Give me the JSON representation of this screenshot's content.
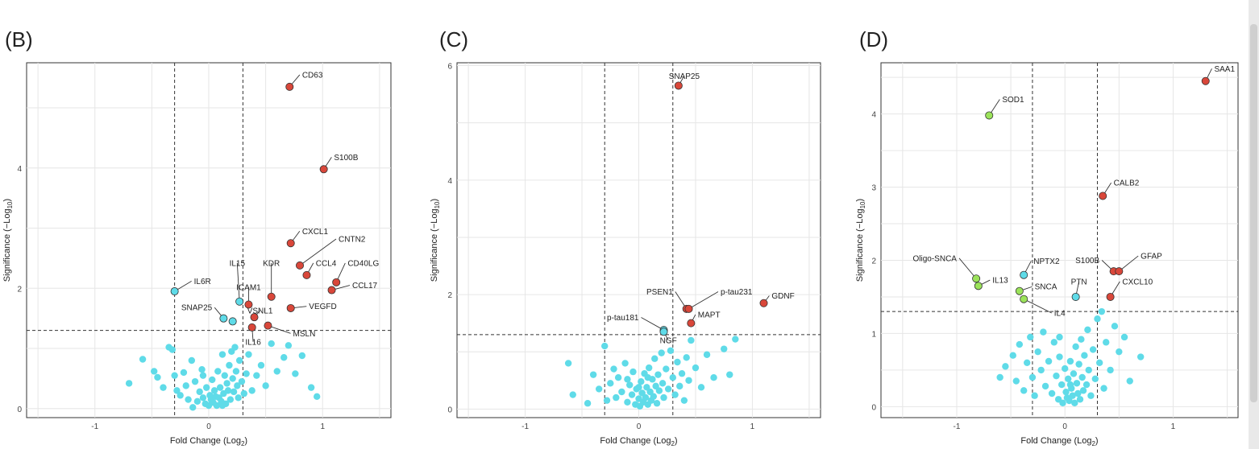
{
  "colors": {
    "ns": "#5fdbe8",
    "sig": "#5fdbe8",
    "up": "#d9473a",
    "down": "#9be35a",
    "outline": "#333333"
  },
  "chart_data": [
    {
      "type": "scatter",
      "panel_label": "(B)",
      "xlabel": "Fold Change (Log",
      "xlabel_sub": "2",
      "xlabel_end": ")",
      "ylabel": "Significance (−Log",
      "ylabel_sub": "10",
      "ylabel_end": ")",
      "xlim": [
        -1.6,
        1.6
      ],
      "ylim": [
        -0.15,
        5.75
      ],
      "xticks": [
        -1,
        0,
        1
      ],
      "xtick_labels": [
        "-1",
        "0",
        "1"
      ],
      "yticks": [
        0,
        2,
        4
      ],
      "ytick_labels": [
        "0",
        "2",
        "4"
      ],
      "vthresholds": [
        -0.3,
        0.3
      ],
      "hthreshold": 1.3,
      "labeled_points": [
        {
          "label": "CD63",
          "x": 0.71,
          "y": 5.35,
          "color": "up",
          "lx": 0.82,
          "ly": 5.55
        },
        {
          "label": "S100B",
          "x": 1.01,
          "y": 3.98,
          "color": "up",
          "lx": 1.1,
          "ly": 4.18
        },
        {
          "label": "CXCL1",
          "x": 0.72,
          "y": 2.75,
          "color": "up",
          "lx": 0.82,
          "ly": 2.95
        },
        {
          "label": "CNTN2",
          "x": 0.8,
          "y": 2.38,
          "color": "up",
          "lx": 1.14,
          "ly": 2.82
        },
        {
          "label": "CCL4",
          "x": 0.86,
          "y": 2.22,
          "color": "up",
          "lx": 0.94,
          "ly": 2.42
        },
        {
          "label": "CD40LG",
          "x": 1.12,
          "y": 2.1,
          "color": "up",
          "lx": 1.22,
          "ly": 2.42
        },
        {
          "label": "KDR",
          "x": 0.55,
          "y": 1.86,
          "color": "up",
          "lx": 0.55,
          "ly": 2.42
        },
        {
          "label": "CCL17",
          "x": 1.08,
          "y": 1.97,
          "color": "up",
          "lx": 1.26,
          "ly": 2.05
        },
        {
          "label": "ICAM1",
          "x": 0.35,
          "y": 1.73,
          "color": "up",
          "lx": 0.35,
          "ly": 2.02
        },
        {
          "label": "VEGFD",
          "x": 0.72,
          "y": 1.67,
          "color": "up",
          "lx": 0.88,
          "ly": 1.7
        },
        {
          "label": "VSNL1",
          "x": 0.4,
          "y": 1.52,
          "color": "up",
          "lx": 0.45,
          "ly": 1.63
        },
        {
          "label": "MSLN",
          "x": 0.52,
          "y": 1.38,
          "color": "up",
          "lx": 0.74,
          "ly": 1.25
        },
        {
          "label": "IL16",
          "x": 0.38,
          "y": 1.35,
          "color": "up",
          "lx": 0.39,
          "ly": 1.11
        },
        {
          "label": "IL15",
          "x": 0.27,
          "y": 1.78,
          "color": "sig",
          "lx": 0.25,
          "ly": 2.42
        },
        {
          "label": "IL6R",
          "x": -0.3,
          "y": 1.95,
          "color": "sig",
          "lx": -0.13,
          "ly": 2.12
        },
        {
          "label": "SNAP25",
          "x": 0.13,
          "y": 1.5,
          "color": "sig",
          "lx": 0.03,
          "ly": 1.68
        },
        {
          "label": "",
          "x": 0.21,
          "y": 1.45,
          "color": "sig",
          "lx": null,
          "ly": null
        }
      ],
      "cloud": [
        [
          -0.7,
          0.42
        ],
        [
          -0.58,
          0.82
        ],
        [
          -0.48,
          0.62
        ],
        [
          -0.45,
          0.52
        ],
        [
          -0.35,
          1.02
        ],
        [
          -0.32,
          0.98
        ],
        [
          -0.3,
          0.55
        ],
        [
          -0.28,
          0.3
        ],
        [
          -0.25,
          0.22
        ],
        [
          -0.22,
          0.6
        ],
        [
          -0.2,
          0.38
        ],
        [
          -0.18,
          0.15
        ],
        [
          -0.15,
          0.8
        ],
        [
          -0.12,
          0.45
        ],
        [
          -0.1,
          0.12
        ],
        [
          -0.08,
          0.28
        ],
        [
          -0.06,
          0.65
        ],
        [
          -0.05,
          0.18
        ],
        [
          -0.03,
          0.08
        ],
        [
          -0.02,
          0.35
        ],
        [
          0.0,
          0.05
        ],
        [
          0.01,
          0.22
        ],
        [
          0.02,
          0.15
        ],
        [
          0.03,
          0.48
        ],
        [
          0.04,
          0.1
        ],
        [
          0.05,
          0.3
        ],
        [
          0.06,
          0.2
        ],
        [
          0.07,
          0.05
        ],
        [
          0.08,
          0.62
        ],
        [
          0.09,
          0.18
        ],
        [
          0.1,
          0.35
        ],
        [
          0.11,
          0.12
        ],
        [
          0.12,
          0.9
        ],
        [
          0.13,
          0.25
        ],
        [
          0.14,
          0.55
        ],
        [
          0.15,
          0.08
        ],
        [
          0.16,
          0.42
        ],
        [
          0.17,
          0.3
        ],
        [
          0.18,
          0.72
        ],
        [
          0.19,
          0.15
        ],
        [
          0.2,
          0.95
        ],
        [
          0.21,
          0.5
        ],
        [
          0.22,
          0.28
        ],
        [
          0.23,
          1.02
        ],
        [
          0.24,
          0.62
        ],
        [
          0.25,
          0.38
        ],
        [
          0.26,
          0.18
        ],
        [
          0.27,
          0.8
        ],
        [
          0.29,
          0.45
        ],
        [
          0.31,
          0.25
        ],
        [
          0.33,
          0.58
        ],
        [
          0.35,
          0.9
        ],
        [
          0.38,
          0.3
        ],
        [
          0.42,
          0.55
        ],
        [
          0.46,
          0.72
        ],
        [
          0.5,
          0.38
        ],
        [
          0.55,
          1.08
        ],
        [
          0.6,
          0.62
        ],
        [
          0.66,
          0.85
        ],
        [
          0.7,
          1.05
        ],
        [
          0.76,
          0.58
        ],
        [
          0.82,
          0.88
        ],
        [
          0.9,
          0.35
        ],
        [
          0.95,
          0.2
        ],
        [
          -0.4,
          0.35
        ],
        [
          -0.05,
          0.55
        ],
        [
          0.12,
          0.05
        ],
        [
          -0.14,
          0.02
        ]
      ]
    },
    {
      "type": "scatter",
      "panel_label": "(C)",
      "xlabel": "Fold Change (Log",
      "xlabel_sub": "2",
      "xlabel_end": ")",
      "ylabel": "Significance (−Log",
      "ylabel_sub": "10",
      "ylabel_end": ")",
      "xlim": [
        -1.6,
        1.6
      ],
      "ylim": [
        -0.15,
        6.05
      ],
      "xticks": [
        -1,
        0,
        1
      ],
      "xtick_labels": [
        "-1",
        "0",
        "1"
      ],
      "yticks": [
        0,
        2,
        4,
        6
      ],
      "ytick_labels": [
        "0",
        "2",
        "4",
        "6"
      ],
      "vthresholds": [
        -0.3,
        0.3
      ],
      "hthreshold": 1.3,
      "labeled_points": [
        {
          "label": "SNAP25",
          "x": 0.35,
          "y": 5.65,
          "color": "up",
          "lx": 0.4,
          "ly": 5.82
        },
        {
          "label": "PSEN1",
          "x": 0.42,
          "y": 1.75,
          "color": "up",
          "lx": 0.3,
          "ly": 2.05
        },
        {
          "label": "p-tau231",
          "x": 0.44,
          "y": 1.75,
          "color": "up",
          "lx": 0.72,
          "ly": 2.05
        },
        {
          "label": "GDNF",
          "x": 1.1,
          "y": 1.85,
          "color": "up",
          "lx": 1.17,
          "ly": 1.98
        },
        {
          "label": "MAPT",
          "x": 0.46,
          "y": 1.5,
          "color": "up",
          "lx": 0.52,
          "ly": 1.65
        },
        {
          "label": "p-tau181",
          "x": 0.22,
          "y": 1.38,
          "color": "sig",
          "lx": 0.0,
          "ly": 1.6
        },
        {
          "label": "NGF",
          "x": 0.22,
          "y": 1.35,
          "color": "sig",
          "lx": 0.26,
          "ly": 1.2
        }
      ],
      "cloud": [
        [
          -0.62,
          0.8
        ],
        [
          -0.58,
          0.25
        ],
        [
          -0.4,
          0.6
        ],
        [
          -0.35,
          0.35
        ],
        [
          -0.3,
          1.1
        ],
        [
          -0.28,
          0.15
        ],
        [
          -0.25,
          0.45
        ],
        [
          -0.22,
          0.7
        ],
        [
          -0.2,
          0.2
        ],
        [
          -0.18,
          0.55
        ],
        [
          -0.15,
          0.3
        ],
        [
          -0.12,
          0.8
        ],
        [
          -0.1,
          0.12
        ],
        [
          -0.08,
          0.42
        ],
        [
          -0.06,
          0.25
        ],
        [
          -0.05,
          0.65
        ],
        [
          -0.03,
          0.08
        ],
        [
          -0.02,
          0.35
        ],
        [
          0.0,
          0.18
        ],
        [
          0.01,
          0.05
        ],
        [
          0.02,
          0.48
        ],
        [
          0.03,
          0.28
        ],
        [
          0.04,
          0.12
        ],
        [
          0.05,
          0.62
        ],
        [
          0.06,
          0.2
        ],
        [
          0.07,
          0.38
        ],
        [
          0.08,
          0.08
        ],
        [
          0.09,
          0.72
        ],
        [
          0.1,
          0.3
        ],
        [
          0.11,
          0.15
        ],
        [
          0.12,
          0.52
        ],
        [
          0.13,
          0.22
        ],
        [
          0.14,
          0.88
        ],
        [
          0.15,
          0.4
        ],
        [
          0.16,
          0.1
        ],
        [
          0.17,
          0.6
        ],
        [
          0.18,
          0.32
        ],
        [
          0.2,
          0.98
        ],
        [
          0.21,
          0.45
        ],
        [
          0.22,
          0.2
        ],
        [
          0.24,
          0.7
        ],
        [
          0.26,
          0.35
        ],
        [
          0.28,
          1.02
        ],
        [
          0.3,
          0.55
        ],
        [
          0.32,
          0.25
        ],
        [
          0.34,
          0.82
        ],
        [
          0.36,
          0.4
        ],
        [
          0.38,
          0.62
        ],
        [
          0.4,
          0.15
        ],
        [
          0.42,
          0.9
        ],
        [
          0.44,
          0.5
        ],
        [
          0.46,
          1.2
        ],
        [
          0.5,
          0.72
        ],
        [
          0.55,
          0.38
        ],
        [
          0.6,
          0.95
        ],
        [
          0.66,
          0.55
        ],
        [
          0.75,
          1.05
        ],
        [
          0.8,
          0.6
        ],
        [
          0.85,
          1.22
        ],
        [
          -0.45,
          0.1
        ],
        [
          -0.1,
          0.52
        ],
        [
          0.0,
          0.38
        ],
        [
          0.08,
          0.55
        ]
      ]
    },
    {
      "type": "scatter",
      "panel_label": "(D)",
      "xlabel": "Fold Change (Log",
      "xlabel_sub": "2",
      "xlabel_end": ")",
      "ylabel": "Significance (−Log",
      "ylabel_sub": "10",
      "ylabel_end": ")",
      "xlim": [
        -1.7,
        1.6
      ],
      "ylim": [
        -0.15,
        4.7
      ],
      "xticks": [
        -1,
        0,
        1
      ],
      "xtick_labels": [
        "-1",
        "0",
        "1"
      ],
      "yticks": [
        0,
        1,
        2,
        3,
        4
      ],
      "ytick_labels": [
        "0",
        "1",
        "2",
        "3",
        "4"
      ],
      "vthresholds": [
        -0.3,
        0.3
      ],
      "hthreshold": 1.3,
      "labeled_points": [
        {
          "label": "SAA1",
          "x": 1.3,
          "y": 4.45,
          "color": "up",
          "lx": 1.38,
          "ly": 4.62
        },
        {
          "label": "SOD1",
          "x": -0.7,
          "y": 3.98,
          "color": "down",
          "lx": -0.58,
          "ly": 4.2
        },
        {
          "label": "CALB2",
          "x": 0.35,
          "y": 2.88,
          "color": "up",
          "lx": 0.45,
          "ly": 3.06
        },
        {
          "label": "S100B",
          "x": 0.45,
          "y": 1.85,
          "color": "up",
          "lx": 0.32,
          "ly": 2.0
        },
        {
          "label": "GFAP",
          "x": 0.5,
          "y": 1.85,
          "color": "up",
          "lx": 0.7,
          "ly": 2.06
        },
        {
          "label": "CXCL10",
          "x": 0.42,
          "y": 1.5,
          "color": "up",
          "lx": 0.53,
          "ly": 1.71
        },
        {
          "label": "PTN",
          "x": 0.1,
          "y": 1.5,
          "color": "sig",
          "lx": 0.13,
          "ly": 1.71
        },
        {
          "label": "NPTX2",
          "x": -0.38,
          "y": 1.8,
          "color": "sig",
          "lx": -0.29,
          "ly": 1.99
        },
        {
          "label": "Oligo-SNCA",
          "x": -0.82,
          "y": 1.75,
          "color": "down",
          "lx": -1.0,
          "ly": 2.03
        },
        {
          "label": "IL13",
          "x": -0.8,
          "y": 1.65,
          "color": "down",
          "lx": -0.67,
          "ly": 1.73
        },
        {
          "label": "SNCA",
          "x": -0.42,
          "y": 1.58,
          "color": "down",
          "lx": -0.28,
          "ly": 1.64
        },
        {
          "label": "IL4",
          "x": -0.38,
          "y": 1.47,
          "color": "down",
          "lx": -0.1,
          "ly": 1.28
        }
      ],
      "cloud": [
        [
          -0.55,
          0.55
        ],
        [
          -0.48,
          0.7
        ],
        [
          -0.45,
          0.35
        ],
        [
          -0.42,
          0.85
        ],
        [
          -0.38,
          0.22
        ],
        [
          -0.35,
          0.6
        ],
        [
          -0.32,
          0.95
        ],
        [
          -0.3,
          0.4
        ],
        [
          -0.28,
          0.15
        ],
        [
          -0.25,
          0.75
        ],
        [
          -0.22,
          0.5
        ],
        [
          -0.2,
          1.02
        ],
        [
          -0.18,
          0.28
        ],
        [
          -0.15,
          0.62
        ],
        [
          -0.12,
          0.18
        ],
        [
          -0.1,
          0.88
        ],
        [
          -0.08,
          0.42
        ],
        [
          -0.06,
          0.1
        ],
        [
          -0.05,
          0.68
        ],
        [
          -0.03,
          0.3
        ],
        [
          -0.02,
          0.05
        ],
        [
          0.0,
          0.52
        ],
        [
          0.01,
          0.2
        ],
        [
          0.02,
          0.12
        ],
        [
          0.03,
          0.38
        ],
        [
          0.04,
          0.08
        ],
        [
          0.05,
          0.62
        ],
        [
          0.06,
          0.25
        ],
        [
          0.07,
          0.15
        ],
        [
          0.08,
          0.45
        ],
        [
          0.09,
          0.05
        ],
        [
          0.1,
          0.82
        ],
        [
          0.11,
          0.32
        ],
        [
          0.12,
          0.18
        ],
        [
          0.13,
          0.58
        ],
        [
          0.14,
          0.1
        ],
        [
          0.15,
          0.92
        ],
        [
          0.16,
          0.4
        ],
        [
          0.17,
          0.22
        ],
        [
          0.18,
          0.7
        ],
        [
          0.2,
          0.3
        ],
        [
          0.21,
          1.05
        ],
        [
          0.22,
          0.5
        ],
        [
          0.24,
          0.15
        ],
        [
          0.26,
          0.78
        ],
        [
          0.28,
          0.38
        ],
        [
          0.3,
          1.2
        ],
        [
          0.32,
          0.6
        ],
        [
          0.34,
          1.3
        ],
        [
          0.36,
          0.25
        ],
        [
          0.38,
          0.88
        ],
        [
          0.42,
          0.5
        ],
        [
          0.46,
          1.1
        ],
        [
          0.5,
          0.75
        ],
        [
          0.55,
          0.95
        ],
        [
          0.6,
          0.35
        ],
        [
          0.7,
          0.68
        ],
        [
          -0.6,
          0.4
        ],
        [
          -0.05,
          0.95
        ],
        [
          0.05,
          0.3
        ]
      ]
    }
  ]
}
